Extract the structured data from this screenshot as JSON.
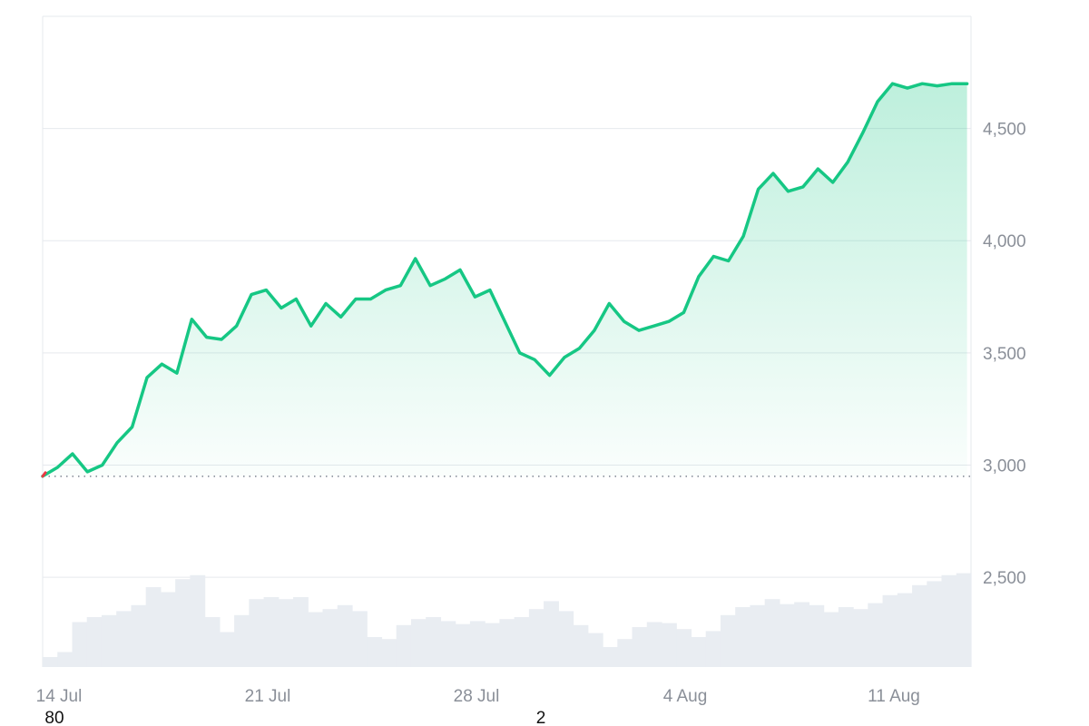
{
  "chart_data": {
    "type": "area",
    "title": "",
    "xlabel": "",
    "ylabel": "",
    "x_ticks": [
      "14 Jul",
      "21 Jul",
      "28 Jul",
      "4 Aug",
      "11 Aug"
    ],
    "y_ticks": [
      "2,500",
      "3,000",
      "3,500",
      "4,000",
      "4,500"
    ],
    "ylim": [
      2100,
      5000
    ],
    "baseline_value": 2950,
    "footer_labels": [
      "80",
      "2"
    ],
    "grid": true,
    "legend": "none",
    "colors": {
      "line": "#16c784",
      "area_top": "#16c784",
      "baseline_dots": "#7d8590",
      "volume": "#e9edf2",
      "grid": "#e6e9ee",
      "start_marker": "#ea3943"
    },
    "price_series": {
      "name": "",
      "x": [
        "2025-07-14",
        "2025-07-14",
        "2025-07-15",
        "2025-07-15",
        "2025-07-16",
        "2025-07-16",
        "2025-07-17",
        "2025-07-17",
        "2025-07-18",
        "2025-07-18",
        "2025-07-19",
        "2025-07-19",
        "2025-07-20",
        "2025-07-20",
        "2025-07-21",
        "2025-07-21",
        "2025-07-22",
        "2025-07-22",
        "2025-07-23",
        "2025-07-23",
        "2025-07-24",
        "2025-07-24",
        "2025-07-25",
        "2025-07-25",
        "2025-07-26",
        "2025-07-26",
        "2025-07-27",
        "2025-07-27",
        "2025-07-28",
        "2025-07-28",
        "2025-07-29",
        "2025-07-29",
        "2025-07-30",
        "2025-07-30",
        "2025-07-31",
        "2025-07-31",
        "2025-08-01",
        "2025-08-01",
        "2025-08-02",
        "2025-08-02",
        "2025-08-03",
        "2025-08-03",
        "2025-08-04",
        "2025-08-04",
        "2025-08-05",
        "2025-08-05",
        "2025-08-06",
        "2025-08-06",
        "2025-08-07",
        "2025-08-07",
        "2025-08-08",
        "2025-08-08",
        "2025-08-09",
        "2025-08-09",
        "2025-08-10",
        "2025-08-10",
        "2025-08-11",
        "2025-08-11",
        "2025-08-12",
        "2025-08-12",
        "2025-08-13",
        "2025-08-13",
        "2025-08-14"
      ],
      "values": [
        2950,
        2990,
        3050,
        2970,
        3000,
        3100,
        3170,
        3390,
        3450,
        3410,
        3650,
        3570,
        3560,
        3620,
        3760,
        3780,
        3700,
        3740,
        3620,
        3720,
        3660,
        3740,
        3740,
        3780,
        3800,
        3920,
        3800,
        3830,
        3870,
        3750,
        3780,
        3640,
        3500,
        3470,
        3400,
        3480,
        3520,
        3600,
        3720,
        3640,
        3600,
        3620,
        3640,
        3680,
        3840,
        3930,
        3910,
        4020,
        4230,
        4300,
        4220,
        4240,
        4320,
        4260,
        4350,
        4480,
        4620,
        4700,
        4680,
        4700,
        4690,
        4700,
        4700
      ]
    },
    "volume_series": {
      "name": "",
      "values": [
        0.1,
        0.15,
        0.45,
        0.5,
        0.52,
        0.56,
        0.62,
        0.8,
        0.75,
        0.88,
        0.92,
        0.5,
        0.35,
        0.52,
        0.68,
        0.7,
        0.68,
        0.7,
        0.55,
        0.58,
        0.62,
        0.56,
        0.3,
        0.28,
        0.42,
        0.48,
        0.5,
        0.46,
        0.43,
        0.46,
        0.44,
        0.48,
        0.5,
        0.58,
        0.66,
        0.56,
        0.42,
        0.34,
        0.2,
        0.28,
        0.4,
        0.45,
        0.44,
        0.38,
        0.3,
        0.36,
        0.52,
        0.6,
        0.62,
        0.68,
        0.63,
        0.65,
        0.62,
        0.55,
        0.6,
        0.58,
        0.64,
        0.72,
        0.74,
        0.82,
        0.86,
        0.92,
        0.94
      ]
    }
  }
}
